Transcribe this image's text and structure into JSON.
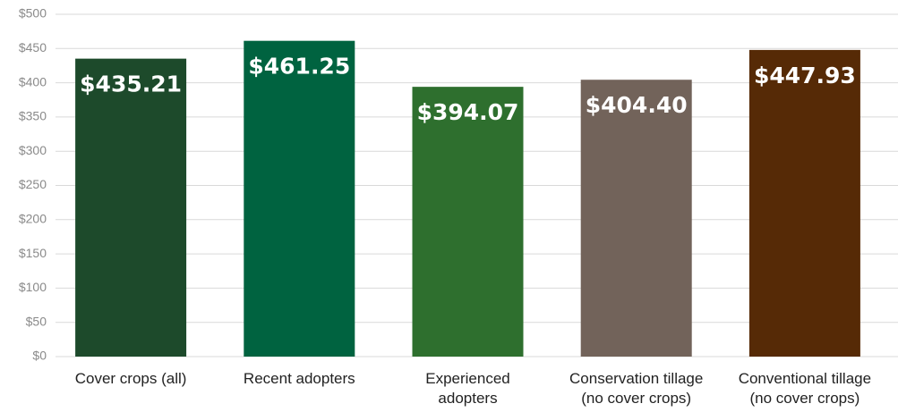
{
  "chart_data": {
    "type": "bar",
    "categories": [
      "Cover crops (all)",
      "Recent adopters",
      "Experienced\nadopters",
      "Conservation tillage\n(no cover crops)",
      "Conventional tillage\n(no cover crops)"
    ],
    "values": [
      435.21,
      461.25,
      394.07,
      404.4,
      447.93
    ],
    "value_labels": [
      "$435.21",
      "$461.25",
      "$394.07",
      "$404.40",
      "$447.93"
    ],
    "colors": [
      "#1d4a2b",
      "#006340",
      "#2e6f2e",
      "#72635a",
      "#562a06"
    ],
    "ylim": [
      0,
      500
    ],
    "yticks": [
      {
        "value": 0,
        "label": "$0"
      },
      {
        "value": 50,
        "label": "$50"
      },
      {
        "value": 100,
        "label": "$100"
      },
      {
        "value": 150,
        "label": "$150"
      },
      {
        "value": 200,
        "label": "$200"
      },
      {
        "value": 250,
        "label": "$250"
      },
      {
        "value": 300,
        "label": "$300"
      },
      {
        "value": 350,
        "label": "$350"
      },
      {
        "value": 400,
        "label": "$400"
      },
      {
        "value": 450,
        "label": "$450"
      },
      {
        "value": 500,
        "label": "$500"
      }
    ],
    "grid": true
  }
}
